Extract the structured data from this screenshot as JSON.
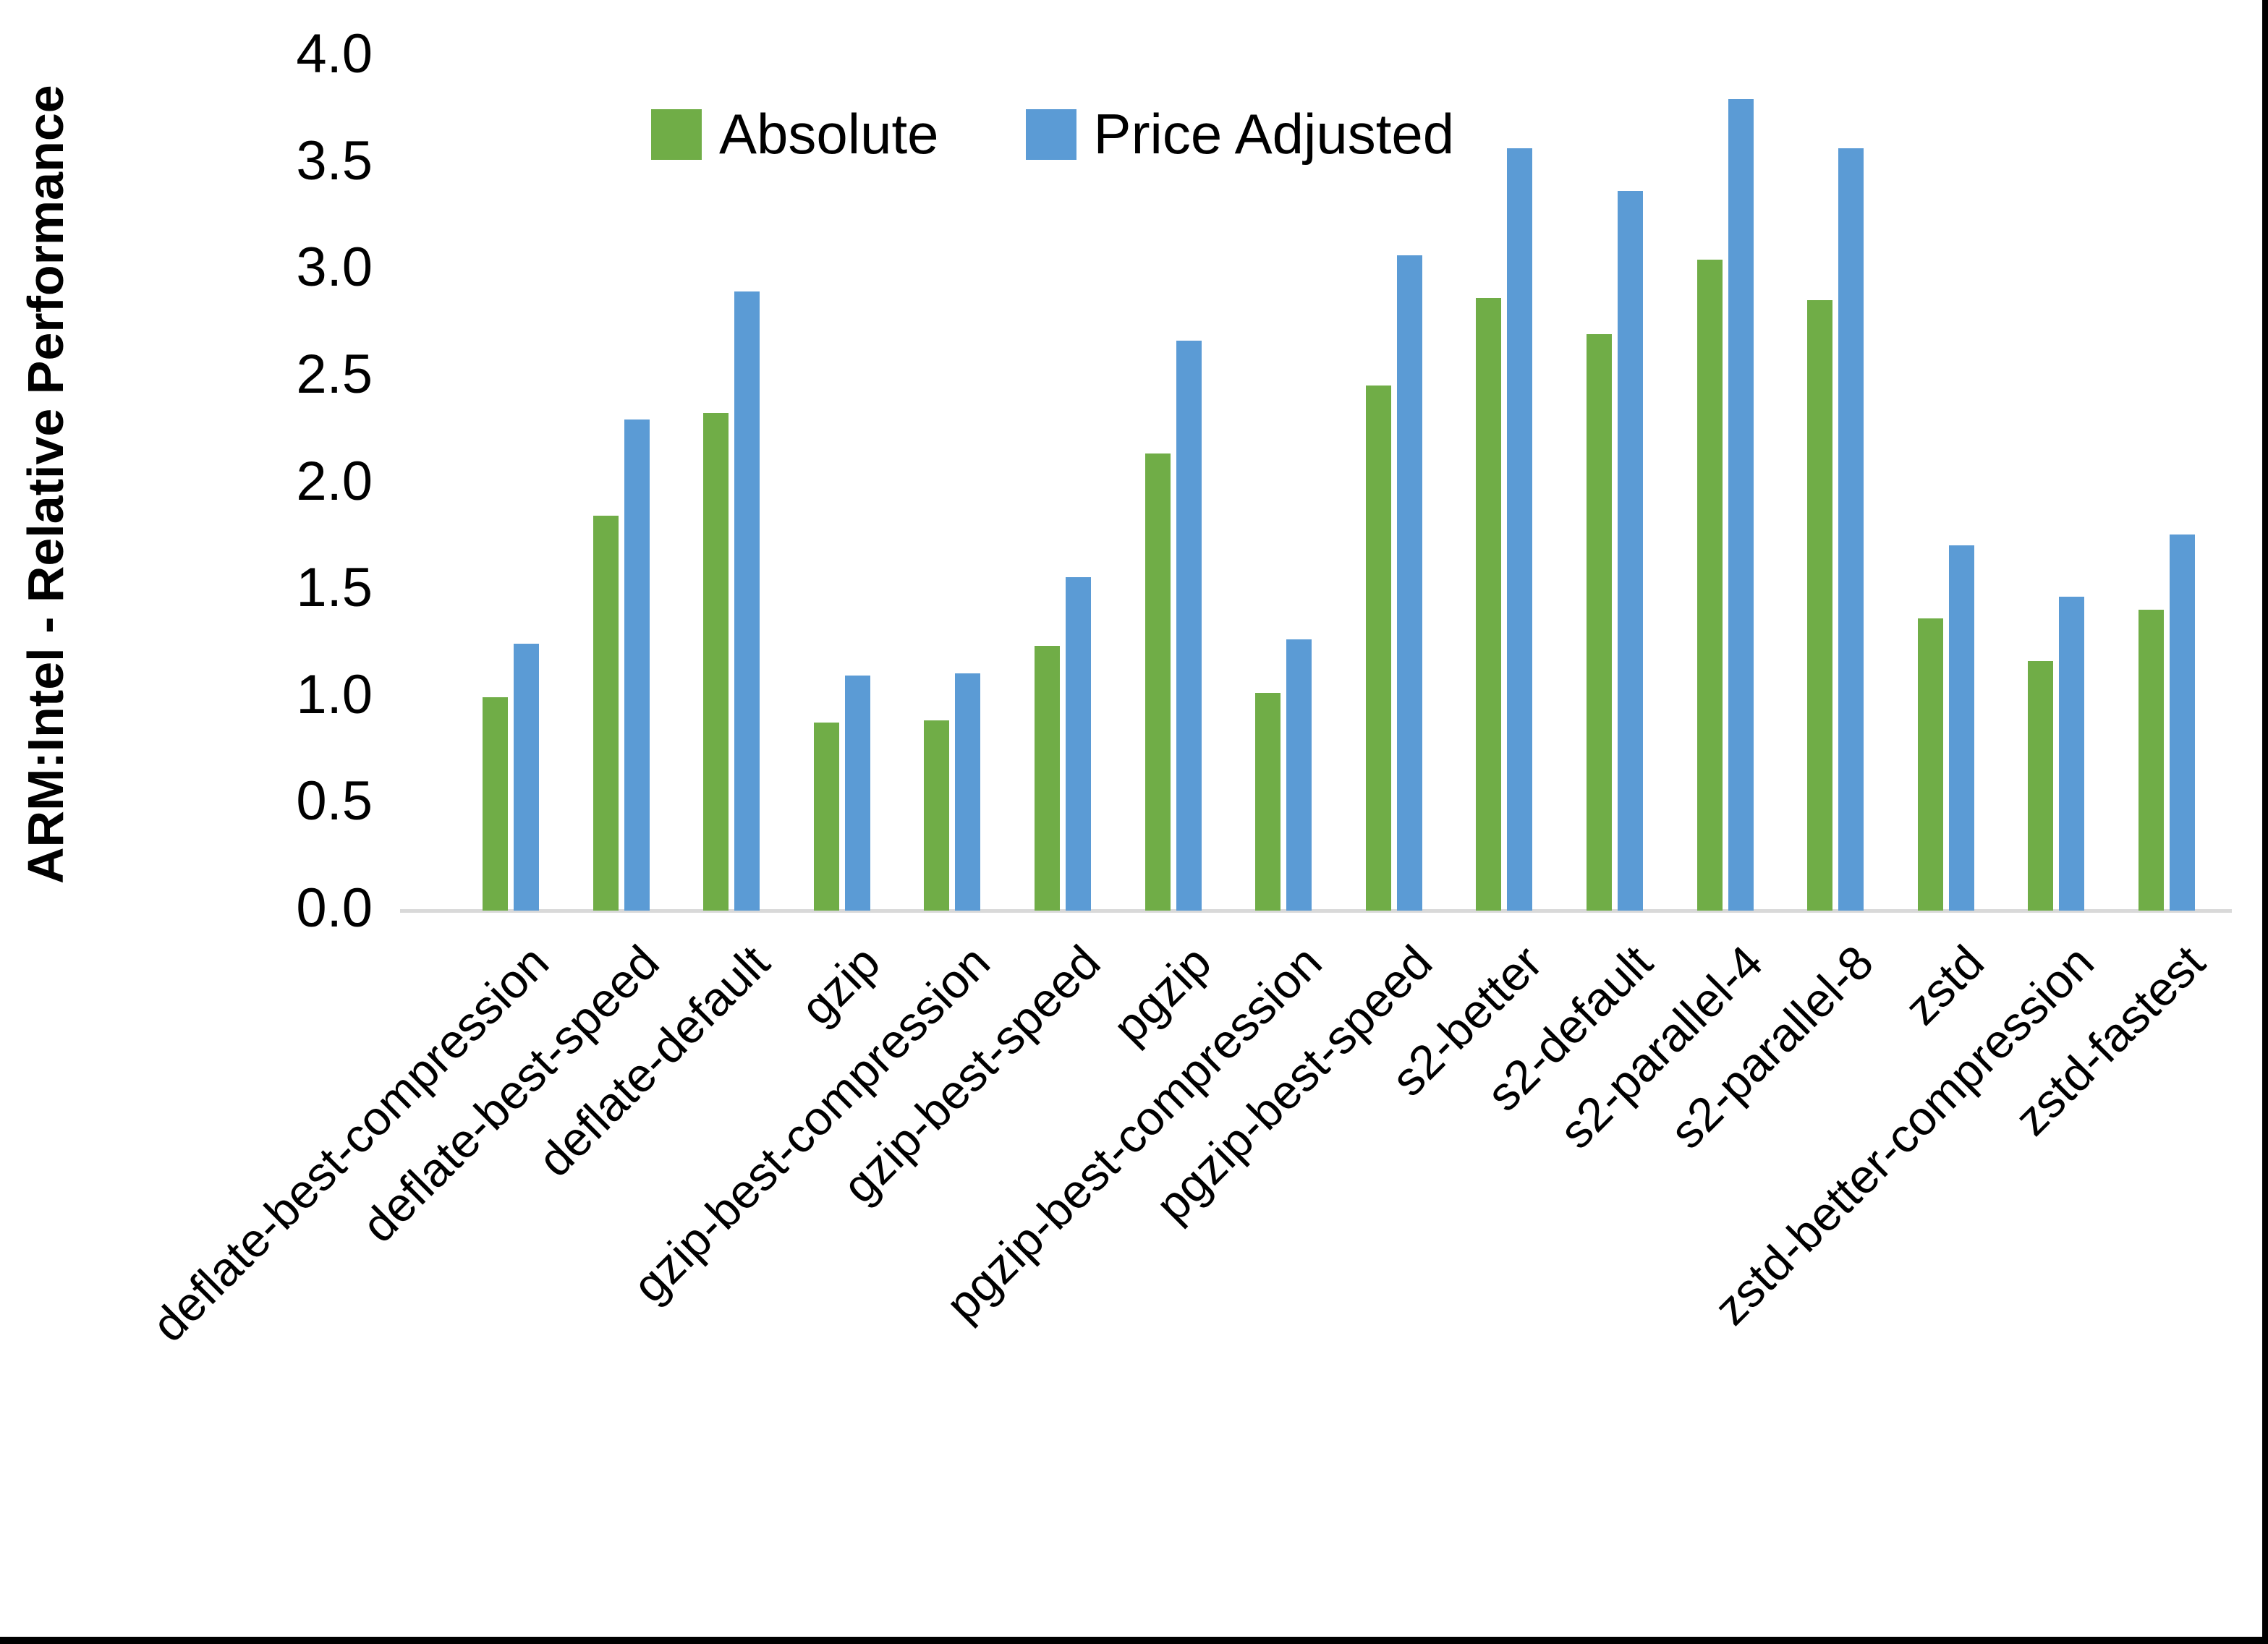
{
  "chart_data": {
    "type": "bar",
    "title": "",
    "xlabel": "",
    "ylabel": "ARM:Intel - Relative Performance",
    "ylim": [
      0.0,
      4.0
    ],
    "ytick_step": 0.5,
    "ytick_labels": [
      "0.0",
      "0.5",
      "1.0",
      "1.5",
      "2.0",
      "2.5",
      "3.0",
      "3.5",
      "4.0"
    ],
    "grid": false,
    "legend_position": "top",
    "categories": [
      "deflate-best-compression",
      "deflate-best-speed",
      "deflate-default",
      "gzip",
      "gzip-best-compression",
      "gzip-best-speed",
      "pgzip",
      "pgzip-best-compression",
      "pgzip-best-speed",
      "s2-better",
      "s2-default",
      "s2-parallel-4",
      "s2-parallel-8",
      "zstd",
      "zstd-better-compression",
      "zstd-fastest"
    ],
    "series": [
      {
        "name": "Absolute",
        "color": "#70AD47",
        "values": [
          1.0,
          1.85,
          2.33,
          0.88,
          0.89,
          1.24,
          2.14,
          1.02,
          2.46,
          2.87,
          2.7,
          3.05,
          2.86,
          1.37,
          1.17,
          1.41
        ]
      },
      {
        "name": "Price Adjusted",
        "color": "#5B9BD5",
        "values": [
          1.25,
          2.3,
          2.9,
          1.1,
          1.11,
          1.56,
          2.67,
          1.27,
          3.07,
          3.57,
          3.37,
          3.8,
          3.57,
          1.71,
          1.47,
          1.76
        ]
      }
    ]
  },
  "legend": {
    "items": [
      {
        "label": "Absolute",
        "color": "#70AD47"
      },
      {
        "label": "Price Adjusted",
        "color": "#5B9BD5"
      }
    ]
  },
  "colors": {
    "axis_line": "#d9d9d9",
    "text": "#000000",
    "background": "#ffffff",
    "page_border": "#000000"
  }
}
